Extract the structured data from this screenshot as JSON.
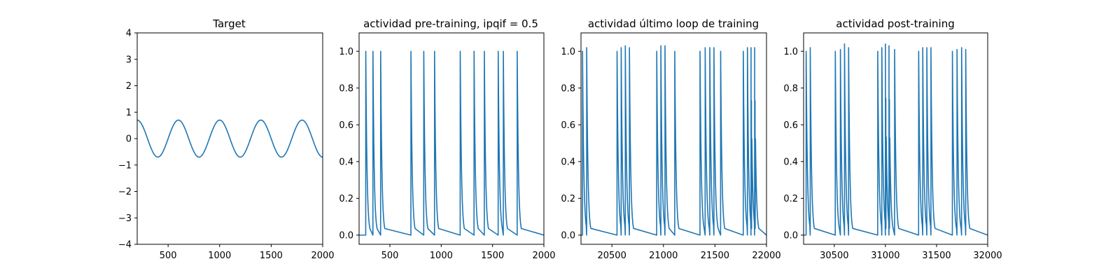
{
  "chart_data": [
    {
      "id": "target",
      "type": "line",
      "title": "Target",
      "xlabel": "",
      "ylabel": "",
      "xlim": [
        200,
        2000
      ],
      "ylim": [
        -4,
        4
      ],
      "xticks": [
        500,
        1000,
        1500,
        2000
      ],
      "xtick_labels": [
        "500",
        "1000",
        "1500",
        "2000"
      ],
      "yticks": [
        -4,
        -3,
        -2,
        -1,
        0,
        1,
        2,
        3,
        4
      ],
      "ytick_labels": [
        "−4",
        "−3",
        "−2",
        "−1",
        "0",
        "1",
        "2",
        "3",
        "4"
      ],
      "grid": false,
      "series": [
        {
          "color": "#1f77b4",
          "x": [
            200,
            300,
            400,
            500,
            600,
            700,
            800,
            900,
            1000,
            1100,
            1200,
            1300,
            1400,
            1500,
            1600,
            1700,
            1800,
            1900,
            2000
          ],
          "y": [
            0.7,
            0,
            -0.7,
            0,
            0.7,
            0,
            -0.7,
            0,
            0.7,
            0,
            -0.7,
            0,
            0.7,
            0,
            -0.7,
            0,
            0.7,
            0,
            -0.7
          ],
          "period": 400,
          "amplitude": 0.7,
          "peak_x": 200,
          "shape": "cosine"
        }
      ]
    },
    {
      "id": "pre",
      "type": "line",
      "title": "actividad pre-training, ipqif = 0.5",
      "xlabel": "",
      "ylabel": "",
      "xlim": [
        200,
        2000
      ],
      "ylim": [
        -0.05,
        1.1
      ],
      "xticks": [
        500,
        1000,
        1500,
        2000
      ],
      "xtick_labels": [
        "500",
        "1000",
        "1500",
        "2000"
      ],
      "yticks": [
        0,
        0.2,
        0.4,
        0.6,
        0.8,
        1.0
      ],
      "ytick_labels": [
        "0.0",
        "0.2",
        "0.4",
        "0.6",
        "0.8",
        "1.0"
      ],
      "grid": false,
      "series": [
        {
          "color": "#1f77b4",
          "baseline": 0,
          "decay": 12,
          "spikes": [
            {
              "x": 265,
              "y": 1.0
            },
            {
              "x": 335,
              "y": 1.0
            },
            {
              "x": 410,
              "y": 1.0
            },
            {
              "x": 705,
              "y": 1.0
            },
            {
              "x": 830,
              "y": 1.0
            },
            {
              "x": 935,
              "y": 1.0
            },
            {
              "x": 1185,
              "y": 1.0
            },
            {
              "x": 1320,
              "y": 1.0
            },
            {
              "x": 1420,
              "y": 1.0
            },
            {
              "x": 1555,
              "y": 1.0
            },
            {
              "x": 1605,
              "y": 1.0
            },
            {
              "x": 1740,
              "y": 1.0
            }
          ]
        }
      ]
    },
    {
      "id": "last-loop",
      "type": "line",
      "title": "actividad último loop de training",
      "xlabel": "",
      "ylabel": "",
      "xlim": [
        20200,
        22000
      ],
      "ylim": [
        -0.05,
        1.1
      ],
      "xticks": [
        20500,
        21000,
        21500,
        22000
      ],
      "xtick_labels": [
        "20500",
        "21000",
        "21500",
        "22000"
      ],
      "yticks": [
        0,
        0.2,
        0.4,
        0.6,
        0.8,
        1.0
      ],
      "ytick_labels": [
        "0.0",
        "0.2",
        "0.4",
        "0.6",
        "0.8",
        "1.0"
      ],
      "grid": false,
      "series": [
        {
          "color": "#1f77b4",
          "baseline": 0,
          "decay": 12,
          "spikes": [
            {
              "x": 20215,
              "y": 1.0
            },
            {
              "x": 20255,
              "y": 1.02
            },
            {
              "x": 20550,
              "y": 1.0
            },
            {
              "x": 20590,
              "y": 1.02
            },
            {
              "x": 20630,
              "y": 1.03
            },
            {
              "x": 20670,
              "y": 1.02
            },
            {
              "x": 20935,
              "y": 1.0
            },
            {
              "x": 20975,
              "y": 1.03
            },
            {
              "x": 21015,
              "y": 1.03
            },
            {
              "x": 21110,
              "y": 1.0
            },
            {
              "x": 21355,
              "y": 1.0
            },
            {
              "x": 21405,
              "y": 1.02
            },
            {
              "x": 21450,
              "y": 1.02
            },
            {
              "x": 21490,
              "y": 1.02
            },
            {
              "x": 21555,
              "y": 1.0
            },
            {
              "x": 21775,
              "y": 1.0
            },
            {
              "x": 21815,
              "y": 1.02
            },
            {
              "x": 21850,
              "y": 1.02
            },
            {
              "x": 21885,
              "y": 1.02
            }
          ]
        }
      ]
    },
    {
      "id": "post",
      "type": "line",
      "title": "actividad post-training",
      "xlabel": "",
      "ylabel": "",
      "xlim": [
        30200,
        32000
      ],
      "ylim": [
        -0.05,
        1.1
      ],
      "xticks": [
        30500,
        31000,
        31500,
        32000
      ],
      "xtick_labels": [
        "30500",
        "31000",
        "31500",
        "32000"
      ],
      "yticks": [
        0,
        0.2,
        0.4,
        0.6,
        0.8,
        1.0
      ],
      "ytick_labels": [
        "0.0",
        "0.2",
        "0.4",
        "0.6",
        "0.8",
        "1.0"
      ],
      "grid": false,
      "series": [
        {
          "color": "#1f77b4",
          "baseline": 0,
          "decay": 12,
          "spikes": [
            {
              "x": 30225,
              "y": 1.0
            },
            {
              "x": 30265,
              "y": 1.02
            },
            {
              "x": 30510,
              "y": 1.0
            },
            {
              "x": 30560,
              "y": 1.01
            },
            {
              "x": 30600,
              "y": 1.04
            },
            {
              "x": 30640,
              "y": 1.02
            },
            {
              "x": 30925,
              "y": 1.0
            },
            {
              "x": 30965,
              "y": 1.02
            },
            {
              "x": 31000,
              "y": 1.04
            },
            {
              "x": 31035,
              "y": 1.03
            },
            {
              "x": 31090,
              "y": 1.01
            },
            {
              "x": 31325,
              "y": 1.0
            },
            {
              "x": 31365,
              "y": 1.02
            },
            {
              "x": 31405,
              "y": 1.02
            },
            {
              "x": 31445,
              "y": 1.02
            },
            {
              "x": 31655,
              "y": 1.0
            },
            {
              "x": 31700,
              "y": 1.01
            },
            {
              "x": 31745,
              "y": 1.02
            },
            {
              "x": 31785,
              "y": 1.01
            }
          ]
        }
      ]
    }
  ]
}
